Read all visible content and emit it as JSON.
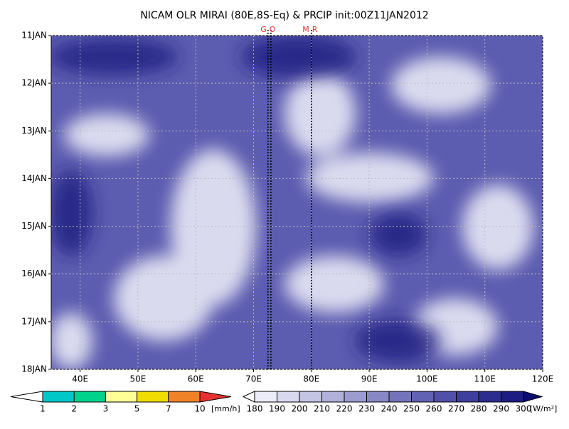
{
  "chart_data": {
    "type": "hovmoller",
    "title": "NICAM OLR MIRAI (80E,8S-Eq) & PRCIP init:00Z11JAN2012",
    "xlim": [
      35,
      120
    ],
    "xticks": [
      {
        "value": 40,
        "label": "40E"
      },
      {
        "value": 50,
        "label": "50E"
      },
      {
        "value": 60,
        "label": "60E"
      },
      {
        "value": 70,
        "label": "70E"
      },
      {
        "value": 80,
        "label": "80E"
      },
      {
        "value": 90,
        "label": "90E"
      },
      {
        "value": 100,
        "label": "100E"
      },
      {
        "value": 110,
        "label": "110E"
      },
      {
        "value": 120,
        "label": "120E"
      }
    ],
    "ylim": [
      11,
      18
    ],
    "yticks": [
      {
        "value": 11,
        "label": "11JAN"
      },
      {
        "value": 12,
        "label": "12JAN"
      },
      {
        "value": 13,
        "label": "13JAN"
      },
      {
        "value": 14,
        "label": "14JAN"
      },
      {
        "value": 15,
        "label": "15JAN"
      },
      {
        "value": 16,
        "label": "16JAN"
      },
      {
        "value": 17,
        "label": "17JAN"
      },
      {
        "value": 18,
        "label": "18JAN"
      }
    ],
    "grid": true,
    "markers": [
      {
        "label": "GO",
        "x": [
          72.5,
          73
        ],
        "color": "#e63232"
      },
      {
        "label": "MR",
        "x": [
          80
        ],
        "color": "#e63232"
      }
    ],
    "precip_levels": [
      1,
      2,
      3,
      5,
      7,
      10
    ],
    "precip_colors": [
      "#ffffff",
      "#00c8c8",
      "#00d28c",
      "#ffff96",
      "#f0dc00",
      "#f08228",
      "#e63232"
    ],
    "precip_unit": "[mm/h]",
    "olr_levels": [
      180,
      190,
      200,
      210,
      220,
      230,
      240,
      250,
      260,
      270,
      280,
      290,
      300
    ],
    "olr_colors": [
      "#ffffff",
      "#ececf8",
      "#d8d8ee",
      "#c4c4e4",
      "#b0b0da",
      "#9c9cd0",
      "#8888c6",
      "#7474bc",
      "#6262b2",
      "#5050a8",
      "#3e3e9c",
      "#2c2c90",
      "#1c1c84",
      "#0c0c6e"
    ],
    "olr_unit": "[W/m²]"
  }
}
